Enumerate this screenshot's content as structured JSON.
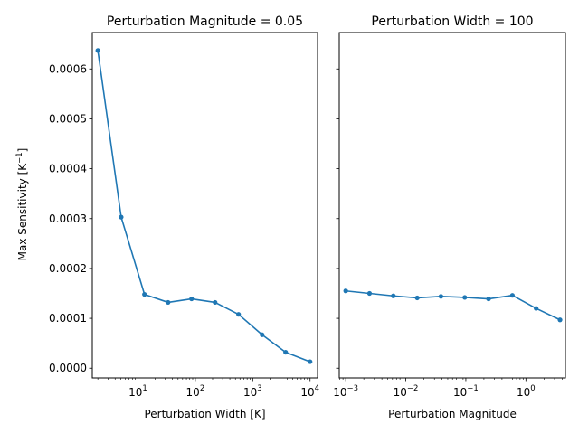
{
  "chart_data": [
    {
      "type": "line",
      "title": "Perturbation Magnitude = 0.05",
      "xlabel": "Perturbation Width [K]",
      "ylabel": "Max Sensitivity [K",
      "ylabel_sup": "−1",
      "ylabel_close": "]",
      "xscale": "log",
      "xlim": [
        1.6,
        13500
      ],
      "ylim": [
        -1.95e-05,
        0.000673
      ],
      "xticks": [
        {
          "value": 10,
          "base": "10",
          "exp": "1"
        },
        {
          "value": 100,
          "base": "10",
          "exp": "2"
        },
        {
          "value": 1000,
          "base": "10",
          "exp": "3"
        },
        {
          "value": 10000,
          "base": "10",
          "exp": "4"
        }
      ],
      "yticks": [
        {
          "value": 0.0,
          "label": "0.0000"
        },
        {
          "value": 0.0001,
          "label": "0.0001"
        },
        {
          "value": 0.0002,
          "label": "0.0002"
        },
        {
          "value": 0.0003,
          "label": "0.0003"
        },
        {
          "value": 0.0004,
          "label": "0.0004"
        },
        {
          "value": 0.0005,
          "label": "0.0005"
        },
        {
          "value": 0.0006,
          "label": "0.0006"
        }
      ],
      "show_ytick_labels": true,
      "series": [
        {
          "color": "#1f77b4",
          "x": [
            2,
            5.1,
            13,
            33.5,
            86,
            221,
            567,
            1460,
            3750,
            10000
          ],
          "y": [
            0.000637,
            0.000303,
            0.000148,
            0.000132,
            0.000139,
            0.000132,
            0.000108,
            6.7e-05,
            3.2e-05,
            1.3e-05
          ]
        }
      ]
    },
    {
      "type": "line",
      "title": "Perturbation Width = 100",
      "xlabel": "Perturbation Magnitude",
      "xscale": "log",
      "xlim": [
        0.00078,
        4.55
      ],
      "ylim": [
        -1.95e-05,
        0.000673
      ],
      "xticks": [
        {
          "value": 0.001,
          "base": "10",
          "exp": "−3"
        },
        {
          "value": 0.01,
          "base": "10",
          "exp": "−2"
        },
        {
          "value": 0.1,
          "base": "10",
          "exp": "−1"
        },
        {
          "value": 1,
          "base": "10",
          "exp": "0"
        }
      ],
      "yticks": [
        {
          "value": 0.0
        },
        {
          "value": 0.0001
        },
        {
          "value": 0.0002
        },
        {
          "value": 0.0003
        },
        {
          "value": 0.0004
        },
        {
          "value": 0.0005
        },
        {
          "value": 0.0006
        }
      ],
      "show_ytick_labels": false,
      "series": [
        {
          "color": "#1f77b4",
          "x": [
            0.001,
            0.00249,
            0.0062,
            0.0155,
            0.0385,
            0.096,
            0.239,
            0.596,
            1.48,
            3.7
          ],
          "y": [
            0.000155,
            0.00015,
            0.000145,
            0.000141,
            0.000144,
            0.000142,
            0.000139,
            0.000146,
            0.00012,
            9.7e-05
          ]
        }
      ]
    }
  ]
}
